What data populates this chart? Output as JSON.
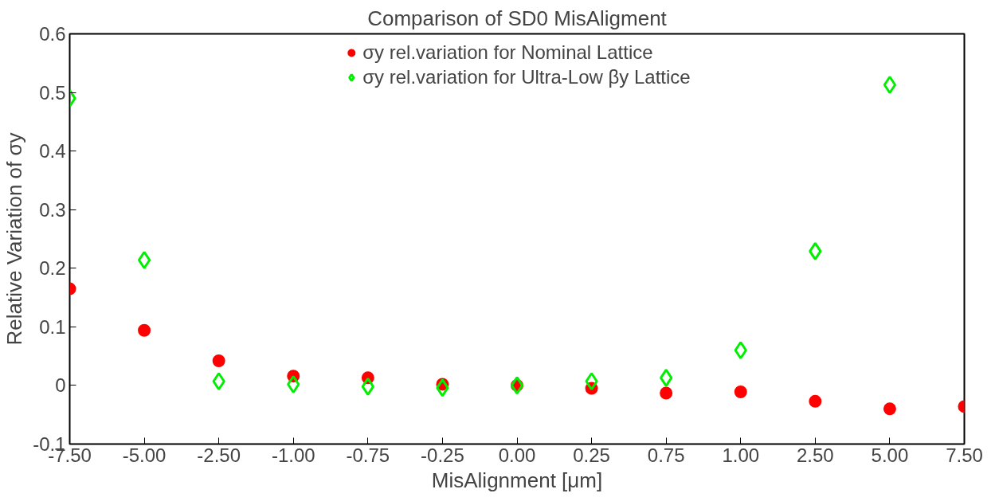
{
  "chart_data": {
    "type": "scatter",
    "title": "Comparison of SD0 MisAligment",
    "xlabel": "MisAlignment [μm]",
    "ylabel": "Relative Variation of σy",
    "categories": [
      "-7.50",
      "-5.00",
      "-2.50",
      "-1.00",
      "-0.75",
      "-0.25",
      "0.00",
      "0.25",
      "0.75",
      "1.00",
      "2.50",
      "5.00",
      "7.50"
    ],
    "series": [
      {
        "name": "σy rel.variation for Nominal Lattice",
        "color": "#ff0000",
        "marker": "circle",
        "values": [
          0.165,
          0.094,
          0.042,
          0.016,
          0.013,
          0.002,
          0.0,
          -0.005,
          -0.013,
          -0.011,
          -0.027,
          -0.04,
          -0.036
        ]
      },
      {
        "name": "σy rel.variation for Ultra-Low βy Lattice",
        "color": "#00ee00",
        "marker": "diamond",
        "values": [
          0.49,
          0.214,
          0.007,
          0.002,
          -0.002,
          -0.004,
          0.0,
          0.007,
          0.013,
          0.06,
          0.229,
          0.513,
          null
        ]
      }
    ],
    "ylim": [
      -0.1,
      0.6
    ],
    "yticks": [
      -0.1,
      0,
      0.1,
      0.2,
      0.3,
      0.4,
      0.5,
      0.6
    ],
    "grid": false,
    "legend": "top"
  }
}
